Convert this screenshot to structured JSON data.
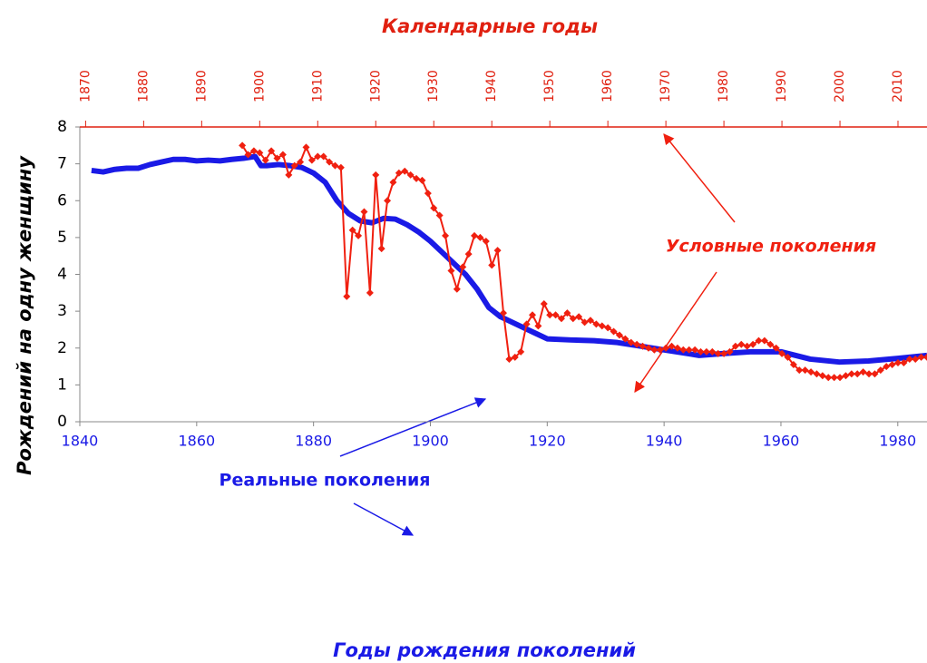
{
  "chart_data": {
    "type": "line",
    "title": "Календарные годы",
    "xlabel": "Годы рождения поколений",
    "ylabel": "Рождений на одну женщину",
    "annotations": [
      "Условные поколения",
      "Реальные поколения"
    ],
    "xlim": [
      1840,
      1985
    ],
    "xticks": [
      1840,
      1860,
      1880,
      1900,
      1920,
      1940,
      1960,
      1980
    ],
    "x2lim": [
      1869,
      2015
    ],
    "x2ticks": [
      1870,
      1880,
      1890,
      1900,
      1910,
      1920,
      1930,
      1940,
      1950,
      1960,
      1970,
      1980,
      1990,
      2000,
      2010
    ],
    "ylim": [
      0,
      8
    ],
    "yticks": [
      0,
      1,
      2,
      3,
      4,
      5,
      6,
      7,
      8
    ],
    "series": [
      {
        "name": "Реальные поколения",
        "color": "#1a1ae6",
        "axis": "x",
        "x": [
          1842,
          1844,
          1846,
          1848,
          1850,
          1852,
          1854,
          1856,
          1858,
          1860,
          1862,
          1864,
          1866,
          1868,
          1870,
          1871,
          1872,
          1874,
          1876,
          1878,
          1880,
          1882,
          1884,
          1886,
          1888,
          1890,
          1892,
          1894,
          1896,
          1898,
          1900,
          1902,
          1904,
          1906,
          1908,
          1910,
          1912,
          1914,
          1916,
          1918,
          1920,
          1924,
          1928,
          1932,
          1936,
          1940,
          1944,
          1946,
          1950,
          1955,
          1960,
          1965,
          1970,
          1975,
          1980,
          1985
        ],
        "values": [
          6.82,
          6.78,
          6.85,
          6.88,
          6.88,
          6.98,
          7.05,
          7.12,
          7.12,
          7.08,
          7.1,
          7.08,
          7.12,
          7.15,
          7.2,
          6.95,
          6.95,
          6.98,
          6.95,
          6.9,
          6.75,
          6.5,
          6.0,
          5.65,
          5.45,
          5.4,
          5.52,
          5.5,
          5.35,
          5.15,
          4.9,
          4.6,
          4.3,
          4.0,
          3.6,
          3.1,
          2.85,
          2.7,
          2.55,
          2.4,
          2.25,
          2.22,
          2.2,
          2.15,
          2.05,
          1.95,
          1.85,
          1.8,
          1.85,
          1.9,
          1.9,
          1.7,
          1.62,
          1.65,
          1.72,
          1.8
        ]
      },
      {
        "name": "Условные поколения",
        "color": "#f02010",
        "axis": "x2",
        "x": [
          1897,
          1898,
          1899,
          1900,
          1901,
          1902,
          1903,
          1904,
          1905,
          1906,
          1907,
          1908,
          1909,
          1910,
          1911,
          1912,
          1913,
          1914,
          1915,
          1916,
          1917,
          1918,
          1919,
          1920,
          1921,
          1922,
          1923,
          1924,
          1925,
          1926,
          1927,
          1928,
          1929,
          1930,
          1931,
          1932,
          1933,
          1934,
          1935,
          1936,
          1937,
          1938,
          1939,
          1940,
          1941,
          1942,
          1943,
          1944,
          1945,
          1946,
          1947,
          1948,
          1949,
          1950,
          1951,
          1952,
          1953,
          1954,
          1955,
          1956,
          1957,
          1958,
          1959,
          1960,
          1961,
          1962,
          1963,
          1964,
          1965,
          1966,
          1967,
          1968,
          1969,
          1970,
          1971,
          1972,
          1973,
          1974,
          1975,
          1976,
          1977,
          1978,
          1979,
          1980,
          1981,
          1982,
          1983,
          1984,
          1985,
          1986,
          1987,
          1988,
          1989,
          1990,
          1991,
          1992,
          1993,
          1994,
          1995,
          1996,
          1997,
          1998,
          1999,
          2000,
          2001,
          2002,
          2003,
          2004,
          2005,
          2006,
          2007,
          2008,
          2009,
          2010,
          2011,
          2012,
          2013,
          2014,
          2015
        ],
        "values": [
          7.5,
          7.25,
          7.35,
          7.3,
          7.1,
          7.35,
          7.15,
          7.25,
          6.7,
          6.95,
          7.05,
          7.45,
          7.1,
          7.2,
          7.2,
          7.05,
          6.95,
          6.9,
          3.4,
          5.2,
          5.05,
          5.7,
          3.5,
          6.7,
          4.7,
          6.0,
          6.5,
          6.75,
          6.8,
          6.7,
          6.6,
          6.55,
          6.2,
          5.8,
          5.6,
          5.05,
          4.1,
          3.6,
          4.2,
          4.55,
          5.05,
          5.0,
          4.9,
          4.25,
          4.65,
          2.95,
          1.7,
          1.75,
          1.9,
          2.65,
          2.9,
          2.6,
          3.2,
          2.9,
          2.9,
          2.8,
          2.95,
          2.8,
          2.85,
          2.7,
          2.75,
          2.65,
          2.6,
          2.55,
          2.45,
          2.35,
          2.25,
          2.15,
          2.1,
          2.05,
          2.0,
          1.95,
          1.95,
          2.0,
          2.05,
          2.0,
          1.95,
          1.95,
          1.95,
          1.9,
          1.9,
          1.9,
          1.85,
          1.85,
          1.9,
          2.05,
          2.1,
          2.05,
          2.1,
          2.2,
          2.2,
          2.1,
          2.0,
          1.85,
          1.75,
          1.55,
          1.4,
          1.4,
          1.35,
          1.3,
          1.25,
          1.2,
          1.2,
          1.2,
          1.25,
          1.3,
          1.3,
          1.35,
          1.3,
          1.3,
          1.4,
          1.5,
          1.55,
          1.6,
          1.6,
          1.7,
          1.7,
          1.75,
          1.75
        ]
      }
    ]
  }
}
